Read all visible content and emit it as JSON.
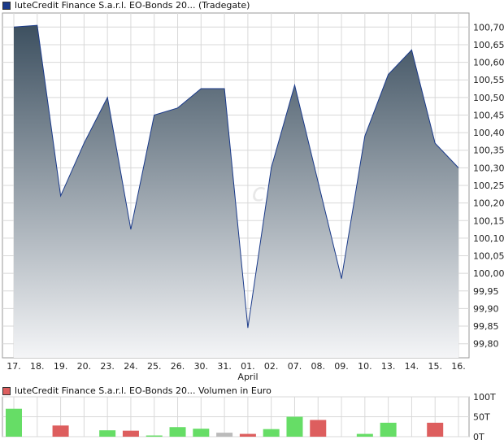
{
  "colors": {
    "price_series": "#1a3a8a",
    "price_fill_top": "#3d5060",
    "price_fill_bottom": "#f4f5f7",
    "volume_up": "#66dd66",
    "volume_down": "#dd5e5e",
    "volume_neutral": "#bbbbbb",
    "grid": "#d8d8d8"
  },
  "legend_price": {
    "label": "luteCredit Finance S.a.r.l. EO-Bonds 20... (Tradegate)",
    "color": "#1a3a8a"
  },
  "legend_volume": {
    "label": "luteCredit Finance S.a.r.l. EO-Bonds 20... Volumen in Euro",
    "color": "#dd5e5e"
  },
  "watermark": "c",
  "chart_data": [
    {
      "type": "area",
      "series": [
        {
          "name": "luteCredit Finance S.a.r.l. EO-Bonds 20... (Tradegate)",
          "x": [
            0,
            1,
            2,
            3,
            4,
            5,
            6,
            7,
            8,
            9,
            10,
            11,
            12,
            13,
            14,
            15,
            16,
            17,
            18,
            19
          ],
          "values": [
            100.7,
            100.705,
            100.22,
            100.37,
            100.5,
            100.125,
            100.45,
            100.47,
            100.525,
            100.525,
            99.845,
            100.3,
            100.535,
            100.26,
            99.985,
            100.39,
            100.565,
            100.635,
            100.37,
            100.3
          ]
        }
      ],
      "x_tick_labels": [
        "17.",
        "18.",
        "19.",
        "20.",
        "23.",
        "24.",
        "25.",
        "26.",
        "30.",
        "31.",
        "01.",
        "02.",
        "07.",
        "08.",
        "09.",
        "10.",
        "13.",
        "14.",
        "15.",
        "16."
      ],
      "x_month_label": "April",
      "y_tick_labels": [
        "100,70",
        "100,65",
        "100,60",
        "100,55",
        "100,50",
        "100,45",
        "100,40",
        "100,35",
        "100,30",
        "100,25",
        "100,20",
        "100,15",
        "100,10",
        "100,05",
        "100,00",
        "99,95",
        "99,90",
        "99,85",
        "99,80"
      ],
      "y_ticks": [
        100.7,
        100.65,
        100.6,
        100.55,
        100.5,
        100.45,
        100.4,
        100.35,
        100.3,
        100.25,
        100.2,
        100.15,
        100.1,
        100.05,
        100.0,
        99.95,
        99.9,
        99.85,
        99.8
      ],
      "ylim": [
        99.76,
        100.74
      ],
      "grid": true,
      "y_axis_side": "right"
    },
    {
      "type": "bar",
      "categories": [
        "17.",
        "18.",
        "19.",
        "20.",
        "23.",
        "24.",
        "25.",
        "26.",
        "30.",
        "31.",
        "01.",
        "02.",
        "07.",
        "08.",
        "09.",
        "10.",
        "13.",
        "14.",
        "15.",
        "16."
      ],
      "values": [
        70,
        0,
        28,
        0,
        16,
        15,
        3,
        24,
        20,
        10,
        7,
        19,
        50,
        42,
        0,
        7,
        35,
        0,
        35,
        0
      ],
      "directions": [
        "up",
        "none",
        "down",
        "none",
        "up",
        "down",
        "up",
        "up",
        "up",
        "neutral",
        "down",
        "up",
        "up",
        "down",
        "none",
        "up",
        "up",
        "none",
        "down",
        "none"
      ],
      "y_tick_labels": [
        "100T",
        "50T",
        "0T"
      ],
      "y_ticks": [
        100,
        50,
        0
      ],
      "ylim": [
        0,
        100
      ],
      "grid": true,
      "y_axis_side": "right"
    }
  ]
}
